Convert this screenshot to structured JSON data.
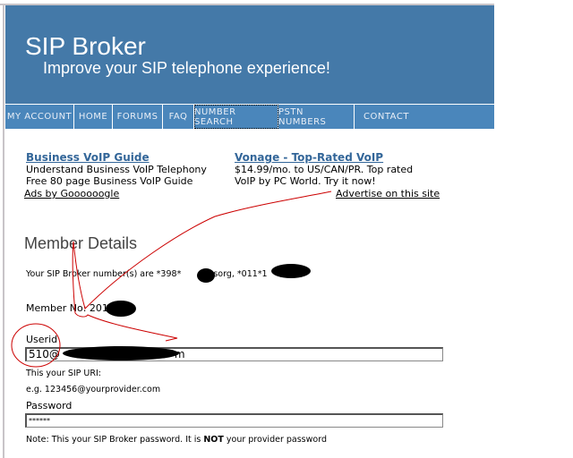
{
  "header": {
    "title": "SIP Broker",
    "tagline": "Improve your SIP telephone experience!"
  },
  "nav": [
    {
      "label": "MY ACCOUNT"
    },
    {
      "label": "HOME"
    },
    {
      "label": "FORUMS"
    },
    {
      "label": "FAQ"
    },
    {
      "label": "NUMBER SEARCH",
      "active": true
    },
    {
      "label": "PSTN NUMBERS"
    },
    {
      "label": "CONTACT"
    }
  ],
  "ads": [
    {
      "title": "Business VoIP Guide",
      "line1": "Understand Business VoIP Telephony",
      "line2": "Free 80 page Business VoIP Guide"
    },
    {
      "title": "Vonage - Top-Rated VoIP",
      "line1": "$14.99/mo. to US/CAN/PR. Top rated",
      "line2": "VoIP by PC World. Try it now!"
    }
  ],
  "ads_by": "Ads by Goooooogle",
  "advertise": "Advertise on this site",
  "member": {
    "heading": "Member Details",
    "numbers_text": "Your SIP Broker number(s) are *398*",
    "numbers_partial": "sorg, *011*1",
    "member_no": "Member No: 201",
    "userid_label": "Userid",
    "userid_value": "510@",
    "userid_suffix": "m",
    "sip_uri_note": "This your SIP URI:",
    "example": "e.g. 123456@yourprovider.com",
    "password_label": "Password",
    "password_value": "******",
    "note_prefix": "Note: This your SIP Broker password. It is ",
    "note_bold": "NOT",
    "note_suffix": " your provider password"
  },
  "colors": {
    "header": "#4479a8",
    "nav": "#4a86bb",
    "link": "#336699",
    "annotation": "#cc0000"
  }
}
